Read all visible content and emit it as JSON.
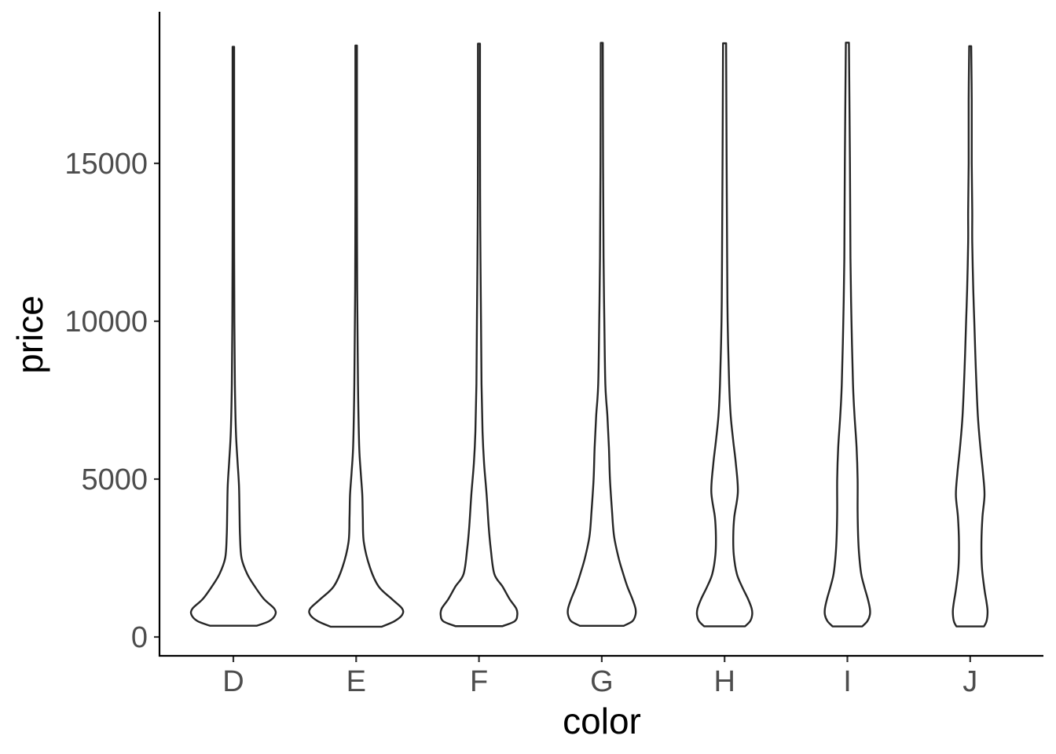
{
  "chart_data": {
    "type": "violin",
    "xlabel": "color",
    "ylabel": "price",
    "categories": [
      "D",
      "E",
      "F",
      "G",
      "H",
      "I",
      "J"
    ],
    "y_ticks": [
      0,
      5000,
      10000,
      15000
    ],
    "y_tick_labels": [
      "0",
      "5000",
      "10000",
      "15000"
    ],
    "ylim": [
      -650,
      19800
    ],
    "grid": false,
    "legend": "none",
    "line_color": "#262626",
    "fill_color": "#ffffff",
    "violins": [
      {
        "category": "D",
        "min": 357,
        "max": 18693,
        "profile": [
          [
            357,
            0.46
          ],
          [
            500,
            0.7
          ],
          [
            700,
            0.82
          ],
          [
            900,
            0.8
          ],
          [
            1200,
            0.6
          ],
          [
            1600,
            0.42
          ],
          [
            2000,
            0.27
          ],
          [
            2500,
            0.16
          ],
          [
            3200,
            0.13
          ],
          [
            4000,
            0.12
          ],
          [
            4800,
            0.11
          ],
          [
            5600,
            0.08
          ],
          [
            6500,
            0.05
          ],
          [
            8000,
            0.03
          ],
          [
            10000,
            0.02
          ],
          [
            13000,
            0.015
          ],
          [
            16000,
            0.015
          ],
          [
            18693,
            0.015
          ]
        ]
      },
      {
        "category": "E",
        "min": 326,
        "max": 18731,
        "profile": [
          [
            326,
            0.5
          ],
          [
            500,
            0.75
          ],
          [
            700,
            0.9
          ],
          [
            900,
            0.9
          ],
          [
            1200,
            0.7
          ],
          [
            1600,
            0.44
          ],
          [
            2200,
            0.27
          ],
          [
            3000,
            0.15
          ],
          [
            3800,
            0.13
          ],
          [
            4500,
            0.12
          ],
          [
            5200,
            0.09
          ],
          [
            6000,
            0.06
          ],
          [
            7500,
            0.04
          ],
          [
            9000,
            0.03
          ],
          [
            11000,
            0.02
          ],
          [
            14000,
            0.015
          ],
          [
            16000,
            0.015
          ],
          [
            18731,
            0.015
          ]
        ]
      },
      {
        "category": "F",
        "min": 342,
        "max": 18791,
        "profile": [
          [
            342,
            0.46
          ],
          [
            500,
            0.7
          ],
          [
            700,
            0.75
          ],
          [
            900,
            0.73
          ],
          [
            1200,
            0.6
          ],
          [
            1600,
            0.46
          ],
          [
            2000,
            0.3
          ],
          [
            2800,
            0.23
          ],
          [
            3500,
            0.19
          ],
          [
            4500,
            0.15
          ],
          [
            5500,
            0.1
          ],
          [
            6500,
            0.07
          ],
          [
            8000,
            0.05
          ],
          [
            10000,
            0.04
          ],
          [
            13000,
            0.025
          ],
          [
            16000,
            0.02
          ],
          [
            18791,
            0.02
          ]
        ]
      },
      {
        "category": "G",
        "min": 354,
        "max": 18818,
        "profile": [
          [
            354,
            0.43
          ],
          [
            500,
            0.6
          ],
          [
            700,
            0.66
          ],
          [
            900,
            0.66
          ],
          [
            1200,
            0.6
          ],
          [
            1600,
            0.5
          ],
          [
            2000,
            0.42
          ],
          [
            2500,
            0.33
          ],
          [
            3200,
            0.24
          ],
          [
            4000,
            0.2
          ],
          [
            5000,
            0.16
          ],
          [
            6000,
            0.14
          ],
          [
            7000,
            0.11
          ],
          [
            8000,
            0.07
          ],
          [
            10000,
            0.05
          ],
          [
            12000,
            0.035
          ],
          [
            15000,
            0.025
          ],
          [
            18818,
            0.02
          ]
        ]
      },
      {
        "category": "H",
        "min": 337,
        "max": 18803,
        "profile": [
          [
            337,
            0.4
          ],
          [
            500,
            0.5
          ],
          [
            700,
            0.54
          ],
          [
            900,
            0.53
          ],
          [
            1200,
            0.46
          ],
          [
            1600,
            0.34
          ],
          [
            2000,
            0.24
          ],
          [
            2600,
            0.18
          ],
          [
            3200,
            0.17
          ],
          [
            3800,
            0.19
          ],
          [
            4600,
            0.26
          ],
          [
            5500,
            0.22
          ],
          [
            6200,
            0.17
          ],
          [
            7000,
            0.12
          ],
          [
            8000,
            0.09
          ],
          [
            10000,
            0.06
          ],
          [
            12000,
            0.05
          ],
          [
            15000,
            0.04
          ],
          [
            18803,
            0.03
          ]
        ]
      },
      {
        "category": "I",
        "min": 334,
        "max": 18823,
        "profile": [
          [
            334,
            0.29
          ],
          [
            500,
            0.39
          ],
          [
            700,
            0.44
          ],
          [
            900,
            0.44
          ],
          [
            1200,
            0.4
          ],
          [
            1600,
            0.33
          ],
          [
            2000,
            0.27
          ],
          [
            2600,
            0.23
          ],
          [
            3200,
            0.21
          ],
          [
            4000,
            0.2
          ],
          [
            5000,
            0.2
          ],
          [
            6000,
            0.18
          ],
          [
            7000,
            0.14
          ],
          [
            8000,
            0.11
          ],
          [
            10000,
            0.08
          ],
          [
            12000,
            0.06
          ],
          [
            15000,
            0.05
          ],
          [
            18823,
            0.03
          ]
        ]
      },
      {
        "category": "J",
        "min": 335,
        "max": 18710,
        "profile": [
          [
            335,
            0.27
          ],
          [
            500,
            0.32
          ],
          [
            800,
            0.34
          ],
          [
            1100,
            0.32
          ],
          [
            1500,
            0.28
          ],
          [
            2200,
            0.23
          ],
          [
            3000,
            0.22
          ],
          [
            3800,
            0.24
          ],
          [
            4500,
            0.28
          ],
          [
            5200,
            0.25
          ],
          [
            6000,
            0.2
          ],
          [
            7000,
            0.15
          ],
          [
            8500,
            0.11
          ],
          [
            10000,
            0.08
          ],
          [
            11000,
            0.06
          ],
          [
            12500,
            0.04
          ],
          [
            13500,
            0.04
          ],
          [
            15000,
            0.03
          ],
          [
            17000,
            0.03
          ],
          [
            18710,
            0.02
          ]
        ]
      }
    ]
  }
}
